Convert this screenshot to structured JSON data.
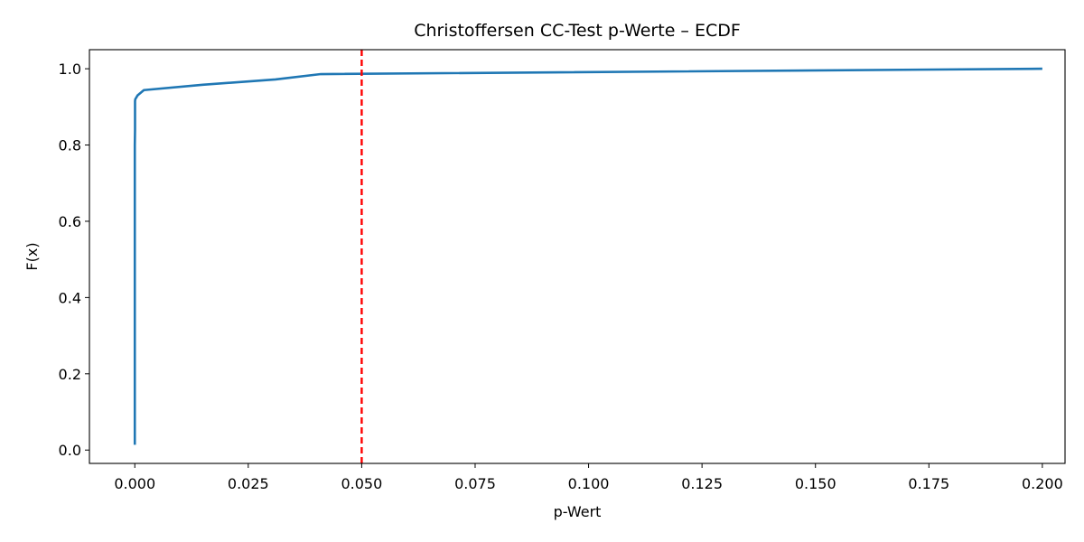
{
  "chart_data": {
    "type": "line",
    "title": "Christoffersen CC-Test p-Werte – ECDF",
    "xlabel": "p-Wert",
    "ylabel": "F(x)",
    "xlim": [
      -0.01,
      0.205
    ],
    "ylim": [
      -0.035,
      1.05
    ],
    "xticks": [
      0.0,
      0.025,
      0.05,
      0.075,
      0.1,
      0.125,
      0.15,
      0.175,
      0.2
    ],
    "xtick_labels": [
      "0.000",
      "0.025",
      "0.050",
      "0.075",
      "0.100",
      "0.125",
      "0.150",
      "0.175",
      "0.200"
    ],
    "yticks": [
      0.0,
      0.2,
      0.4,
      0.6,
      0.8,
      1.0
    ],
    "ytick_labels": [
      "0.0",
      "0.2",
      "0.4",
      "0.6",
      "0.8",
      "1.0"
    ],
    "grid": false,
    "series": [
      {
        "color": "#1f77b4",
        "x": [
          0.0,
          0.0,
          0.0,
          5e-05,
          5e-05,
          0.0001,
          0.0006,
          0.002,
          0.015,
          0.031,
          0.041,
          0.2
        ],
        "y": [
          0.014,
          0.5,
          0.8,
          0.84,
          0.915,
          0.92,
          0.93,
          0.944,
          0.958,
          0.972,
          0.986,
          1.0
        ]
      }
    ],
    "reference_line": {
      "axis": "x",
      "value": 0.05,
      "color": "#ff0000",
      "style": "dashed"
    }
  }
}
